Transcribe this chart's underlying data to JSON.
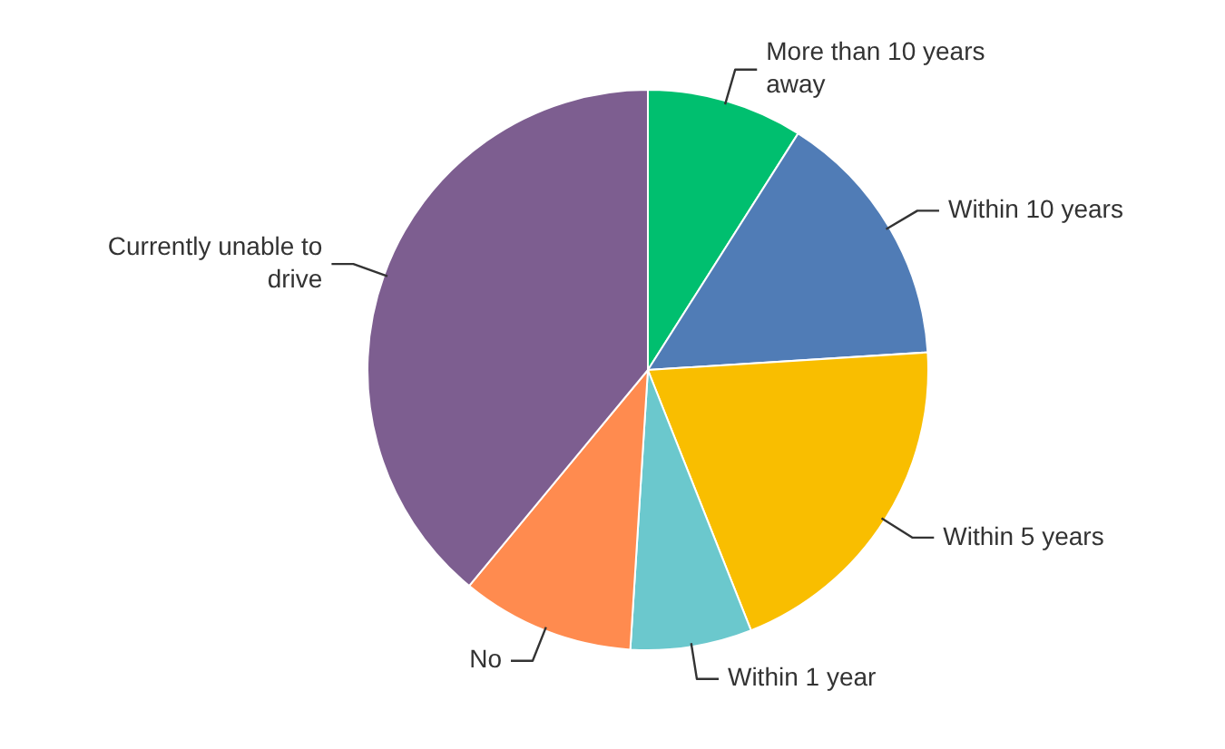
{
  "chart_data": {
    "type": "pie",
    "categories": [
      "More than 10 years away",
      "Within 10 years",
      "Within 5 years",
      "Within 1 year",
      "No",
      "Currently unable to drive"
    ],
    "values": [
      9,
      15,
      20,
      7,
      10,
      39
    ],
    "colors": [
      "#00bf6f",
      "#507cb6",
      "#f9be00",
      "#6bc8cd",
      "#ff8b4f",
      "#7d5e90"
    ],
    "legend": false
  }
}
